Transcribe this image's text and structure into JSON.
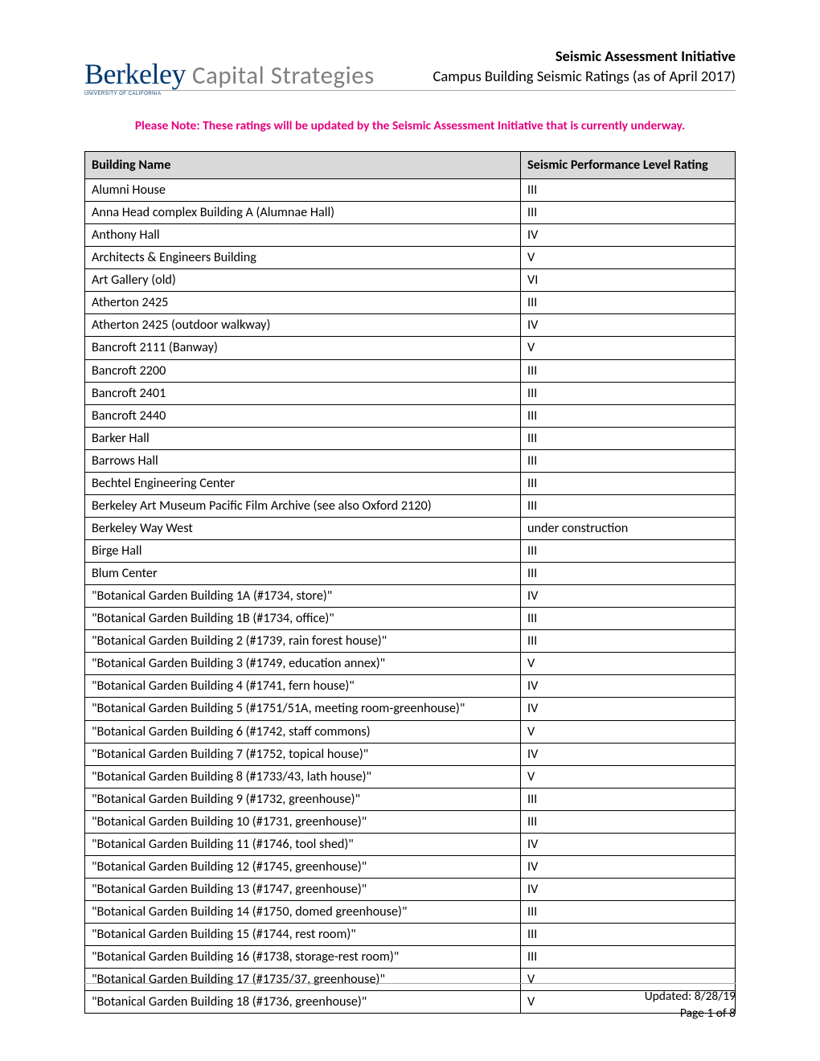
{
  "logo": {
    "main": "Berkeley",
    "sub": "UNIVERSITY OF CALIFORNIA",
    "unit": "Capital Strategies"
  },
  "header": {
    "title": "Seismic Assessment Initiative",
    "subtitle": "Campus Building Seismic Ratings (as of April 2017)"
  },
  "notice": "Please Note: These ratings will be updated by the Seismic Assessment Initiative that is currently underway.",
  "columns": {
    "name": "Building Name",
    "rating": "Seismic Performance Level Rating"
  },
  "rows": [
    {
      "name": "Alumni House",
      "rating": "III"
    },
    {
      "name": "Anna Head complex Building A (Alumnae Hall)",
      "rating": "III"
    },
    {
      "name": "Anthony Hall",
      "rating": "IV"
    },
    {
      "name": "Architects & Engineers Building",
      "rating": "V"
    },
    {
      "name": "Art Gallery (old)",
      "rating": "VI"
    },
    {
      "name": "Atherton 2425",
      "rating": "III"
    },
    {
      "name": "Atherton 2425 (outdoor walkway)",
      "rating": "IV"
    },
    {
      "name": "Bancroft 2111 (Banway)",
      "rating": "V"
    },
    {
      "name": "Bancroft 2200",
      "rating": "III"
    },
    {
      "name": "Bancroft 2401",
      "rating": "III"
    },
    {
      "name": "Bancroft 2440",
      "rating": "III"
    },
    {
      "name": "Barker Hall",
      "rating": "III"
    },
    {
      "name": "Barrows Hall",
      "rating": "III"
    },
    {
      "name": "Bechtel Engineering Center",
      "rating": "III"
    },
    {
      "name": "Berkeley Art Museum Pacific Film Archive (see also Oxford 2120)",
      "rating": "III"
    },
    {
      "name": "Berkeley Way West",
      "rating": "under construction"
    },
    {
      "name": "Birge Hall",
      "rating": "III"
    },
    {
      "name": "Blum Center",
      "rating": "III"
    },
    {
      "name": "\"Botanical Garden Building 1A (#1734, store)\"",
      "rating": "IV"
    },
    {
      "name": "\"Botanical Garden Building 1B (#1734, office)\"",
      "rating": "III"
    },
    {
      "name": "\"Botanical Garden Building 2 (#1739, rain forest house)\"",
      "rating": "III"
    },
    {
      "name": "\"Botanical Garden Building 3 (#1749, education annex)\"",
      "rating": "V"
    },
    {
      "name": "\"Botanical Garden Building 4 (#1741, fern house)\"",
      "rating": "IV"
    },
    {
      "name": "\"Botanical Garden Building 5 (#1751/51A, meeting room-greenhouse)\"",
      "rating": "IV"
    },
    {
      "name": "\"Botanical Garden Building 6 (#1742, staff commons)",
      "rating": "V"
    },
    {
      "name": "\"Botanical Garden Building 7 (#1752, topical house)\"",
      "rating": "IV"
    },
    {
      "name": "\"Botanical Garden Building 8 (#1733/43, lath house)\"",
      "rating": "V"
    },
    {
      "name": "\"Botanical Garden Building 9 (#1732, greenhouse)\"",
      "rating": "III"
    },
    {
      "name": "\"Botanical Garden Building 10 (#1731, greenhouse)\"",
      "rating": "III"
    },
    {
      "name": "\"Botanical Garden Building 11 (#1746, tool shed)\"",
      "rating": "IV"
    },
    {
      "name": "\"Botanical Garden Building 12 (#1745, greenhouse)\"",
      "rating": "IV"
    },
    {
      "name": "\"Botanical Garden Building 13 (#1747, greenhouse)\"",
      "rating": "IV"
    },
    {
      "name": "\"Botanical Garden Building 14 (#1750, domed greenhouse)\"",
      "rating": "III"
    },
    {
      "name": "\"Botanical Garden Building 15 (#1744, rest room)\"",
      "rating": "III"
    },
    {
      "name": "\"Botanical Garden Building 16 (#1738, storage-rest room)\"",
      "rating": "III"
    },
    {
      "name": "\"Botanical Garden Building 17 (#1735/37, greenhouse)\"",
      "rating": "V"
    },
    {
      "name": "\"Botanical Garden Building 18 (#1736, greenhouse)\"",
      "rating": "V"
    }
  ],
  "footer": {
    "updated": "Updated: 8/28/19",
    "page": "Page 1 of 8"
  }
}
